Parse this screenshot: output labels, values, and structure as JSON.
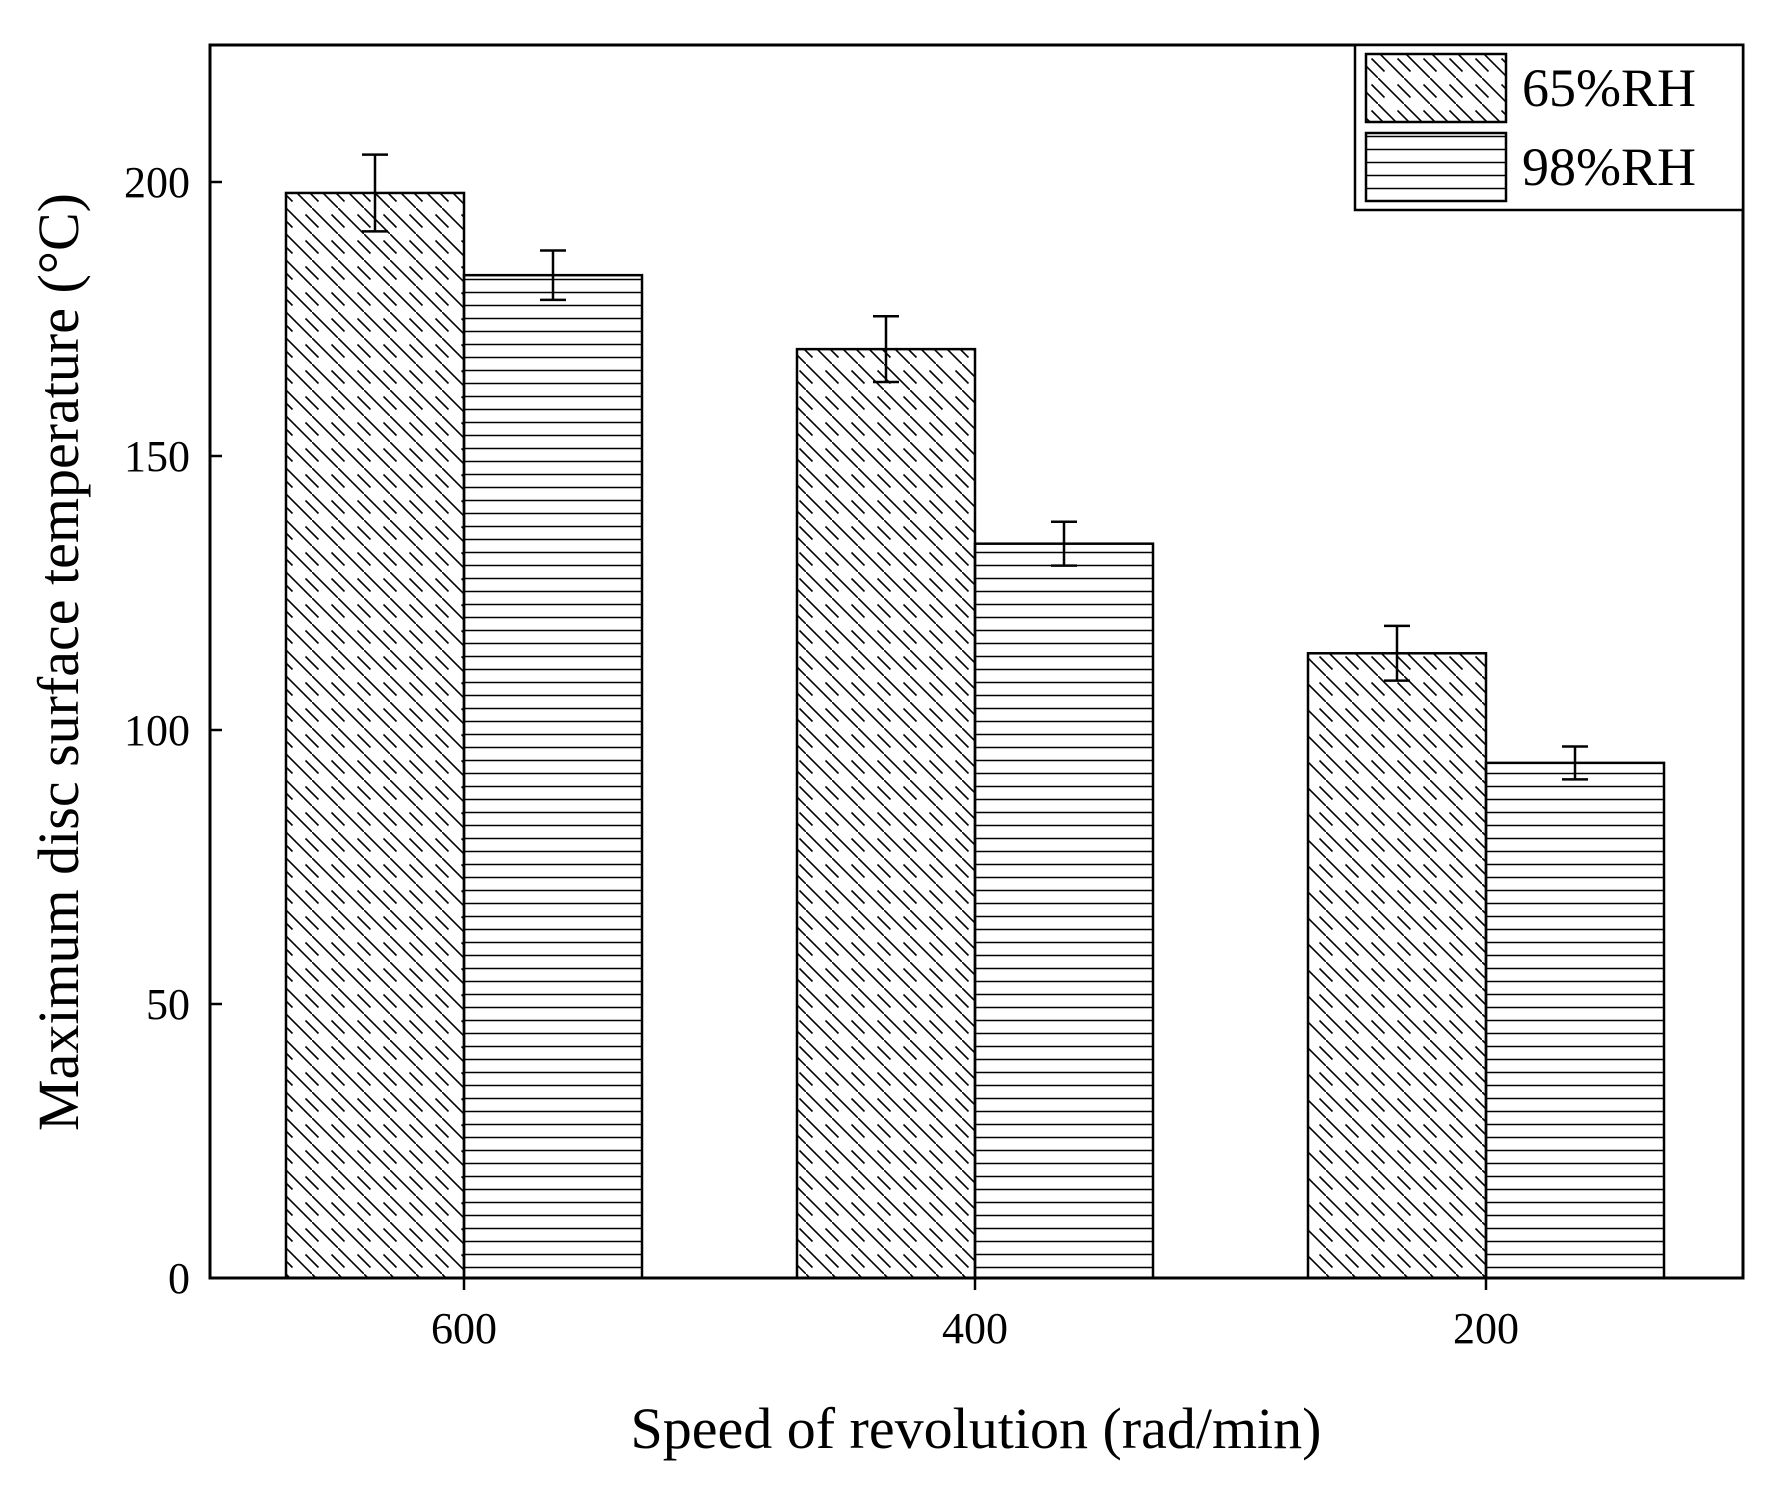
{
  "chart_data": {
    "type": "bar",
    "title": "",
    "xlabel": "Speed of revolution (rad/min)",
    "ylabel": "Maximum disc surface temperature (°C)",
    "categories": [
      "600",
      "400",
      "200"
    ],
    "ylim": [
      0,
      225
    ],
    "yticks": [
      0,
      50,
      100,
      150,
      200
    ],
    "grid": false,
    "legend_position": "top-right",
    "series": [
      {
        "name": "65%RH",
        "pattern": "diagonal-hatch",
        "values": [
          198,
          169.5,
          114
        ],
        "errors": [
          7,
          6,
          5
        ]
      },
      {
        "name": "98%RH",
        "pattern": "horizontal-hatch",
        "values": [
          183,
          134,
          94
        ],
        "errors": [
          4.5,
          4,
          3
        ]
      }
    ]
  },
  "colors": {
    "stroke": "#000000",
    "background": "#ffffff"
  }
}
